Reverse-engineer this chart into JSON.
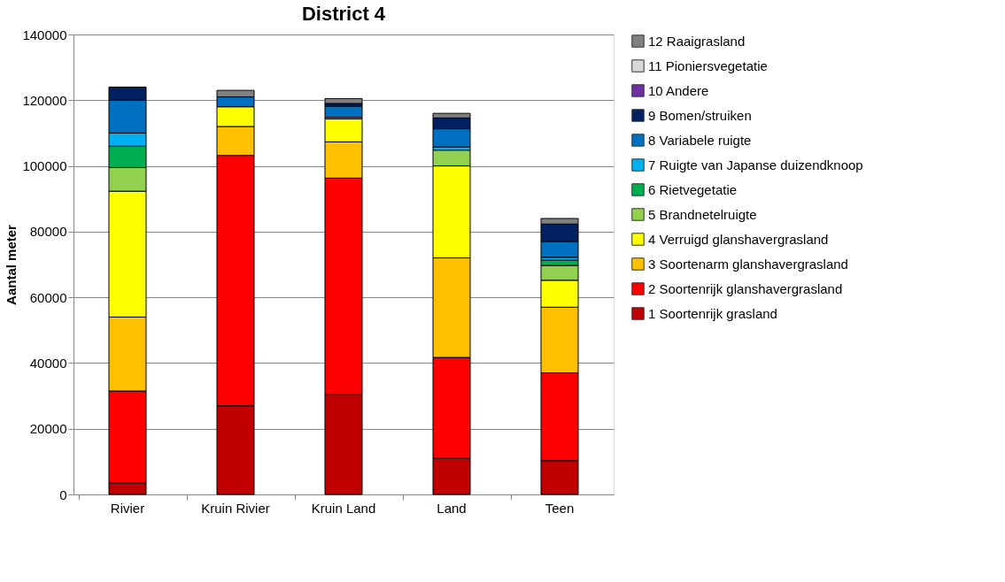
{
  "chart_data": {
    "type": "bar",
    "title": "District 4",
    "ylabel": "Aantal meter",
    "stacked": true,
    "categories": [
      "Rivier",
      "Kruin Rivier",
      "Kruin Land",
      "Land",
      "Teen"
    ],
    "ylim": [
      0,
      140000
    ],
    "yticks": [
      0,
      20000,
      40000,
      60000,
      80000,
      100000,
      120000,
      140000
    ],
    "grid": "y",
    "legend": "right",
    "series": [
      {
        "name": "1 Soortenrijk grasland",
        "color": "#c00000",
        "values": [
          3500,
          27000,
          30500,
          11000,
          10300
        ]
      },
      {
        "name": "2 Soortenrijk glanshavergrasland",
        "color": "#ff0000",
        "values": [
          28000,
          76200,
          65800,
          30700,
          26700
        ]
      },
      {
        "name": "3 Soortenarm glanshavergrasland",
        "color": "#ffc000",
        "values": [
          22500,
          8800,
          11000,
          30300,
          20000
        ]
      },
      {
        "name": "4 Verruigd glanshavergrasland",
        "color": "#ffff00",
        "values": [
          38300,
          6000,
          7000,
          28000,
          8200
        ]
      },
      {
        "name": "5 Brandnetelruigte",
        "color": "#92d050",
        "values": [
          7200,
          0,
          0,
          4800,
          4500
        ]
      },
      {
        "name": "6 Rietvegetatie",
        "color": "#00b050",
        "values": [
          6500,
          0,
          0,
          0,
          1600
        ]
      },
      {
        "name": "7 Ruigte van Japanse duizendknoop",
        "color": "#00b0f0",
        "values": [
          4000,
          null,
          500,
          1000,
          900
        ]
      },
      {
        "name": "8 Variabele ruigte",
        "color": "#0070c0",
        "values": [
          10000,
          3000,
          3400,
          5500,
          4800
        ]
      },
      {
        "name": "9 Bomen/struiken",
        "color": "#002060",
        "values": [
          4000,
          0,
          800,
          3300,
          5300
        ]
      },
      {
        "name": "10 Andere",
        "color": "#7030a0",
        "values": [
          0,
          0,
          0,
          0,
          0
        ]
      },
      {
        "name": "11 Pioniersvegetatie",
        "color": "#d9d9d9",
        "values": [
          0,
          0,
          0,
          0,
          0
        ]
      },
      {
        "name": "12 Raaigrasland",
        "color": "#808080",
        "values": [
          0,
          2000,
          1500,
          1400,
          1700
        ]
      }
    ]
  }
}
